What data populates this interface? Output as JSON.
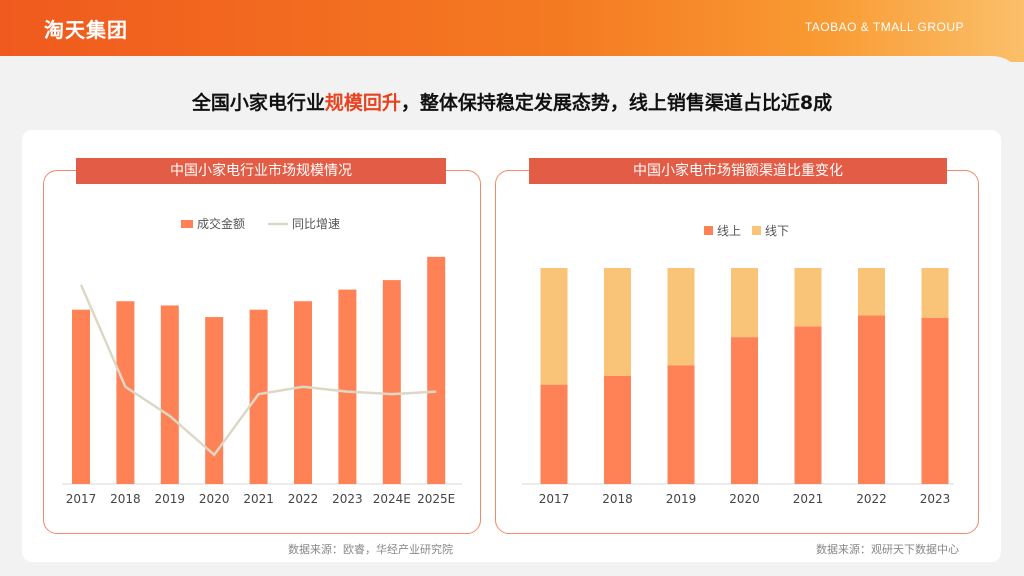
{
  "header": {
    "logo": "淘天集团",
    "group": "TAOBAO & TMALL GROUP"
  },
  "headline": {
    "part1": "全国小家电行业",
    "highlight": "规模回升",
    "part2": "，整体保持稳定发展态势，线上销售渠道占比近8成"
  },
  "colors": {
    "accent": "#e8421e",
    "bar": "#ff8257",
    "line": "#ddd8c4",
    "offline": "#fac478",
    "banner": "#e35c46"
  },
  "left": {
    "banner": "中国小家电行业市场规模情况",
    "source": "数据来源：欧睿，华经产业研究院"
  },
  "right": {
    "banner": "中国小家电市场销额渠道比重变化",
    "source": "数据来源：观研天下数据中心"
  },
  "chart_data": [
    {
      "type": "bar",
      "title": "中国小家电行业市场规模情况",
      "categories": [
        "2017",
        "2018",
        "2019",
        "2020",
        "2021",
        "2022",
        "2023",
        "2024E",
        "2025E"
      ],
      "series": [
        {
          "name": "成交金额",
          "type": "bar",
          "values": [
            165,
            173,
            169,
            158,
            165,
            173,
            184,
            193,
            215
          ]
        },
        {
          "name": "同比增速",
          "type": "line",
          "values": [
            0.82,
            0.4,
            0.28,
            0.12,
            0.37,
            0.4,
            0.38,
            0.37,
            0.38
          ]
        }
      ],
      "legend": [
        "成交金额",
        "同比增速"
      ],
      "ylim": [
        0,
        230
      ],
      "legend_position": "top-center"
    },
    {
      "type": "bar",
      "stacked": true,
      "title": "中国小家电市场销额渠道比重变化",
      "categories": [
        "2017",
        "2018",
        "2019",
        "2020",
        "2021",
        "2022",
        "2023"
      ],
      "series": [
        {
          "name": "线上",
          "values": [
            0.46,
            0.5,
            0.55,
            0.68,
            0.73,
            0.78,
            0.77
          ]
        },
        {
          "name": "线下",
          "values": [
            0.54,
            0.5,
            0.45,
            0.32,
            0.27,
            0.22,
            0.23
          ]
        }
      ],
      "legend": [
        "线上",
        "线下"
      ],
      "ylim": [
        0,
        1
      ],
      "legend_position": "top-center"
    }
  ]
}
